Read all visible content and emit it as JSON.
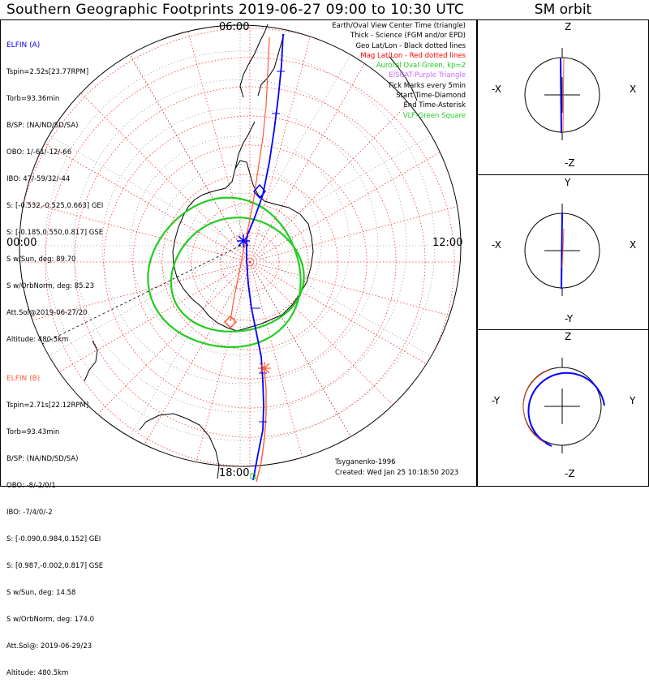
{
  "title": "Southern Geographic Footprints 2019-06-27 09:00 to 10:30 UTC",
  "sm_title": "SM orbit",
  "colors": {
    "elfin_a": "#0000ff",
    "elfin_b": "#ff5a36",
    "oval": "#22cc22",
    "mag_grid": "#ff3333",
    "eiscat": "#cc66ff",
    "geo_grid": "#000000"
  },
  "clock_labels": {
    "top": "06:00",
    "left": "00:00",
    "right": "12:00",
    "bottom": "18:00"
  },
  "elfin_a": {
    "name": "ELFIN (A)",
    "lines": [
      "Tspin=2.52s[23.77RPM]",
      "Torb=93.36min",
      "B/SP: (NA/ND/SD/SA)",
      "OBO: 1/-61/-12/-66",
      "IBO: 47/-59/32/-44",
      "S: [-0.532,-0.525,0.663] GEI",
      "S: [-0.185,0.550,0.817] GSE",
      "S w/Sun, deg: 89.70",
      "S w/OrbNorm, deg: 85.23",
      "Att.Sol@2019-06-27/20",
      "Altitude: 480.5km"
    ]
  },
  "elfin_b": {
    "name": "ELFIN (B)",
    "lines": [
      "Tspin=2.71s[22.12RPM]",
      "Torb=93.43min",
      "B/SP: (NA/ND/SD/SA)",
      "OBO: -8/-2/0/1",
      "IBO: -7/4/0/-2",
      "S: [-0.090,0.984,0.152] GEI",
      "S: [0.987,-0.002,0.817] GSE",
      "S w/Sun, deg: 14.58",
      "S w/OrbNorm, deg: 174.0",
      "Att.Sol@: 2019-06-29/23",
      "Altitude: 480.5km"
    ]
  },
  "legend": [
    {
      "text": "Earth/Oval View Center Time (triangle)",
      "color": "#000000"
    },
    {
      "text": "Thick - Science (FGM and/or EPD)",
      "color": "#000000"
    },
    {
      "text": "Geo Lat/Lon - Black dotted lines",
      "color": "#000000"
    },
    {
      "text": "Mag Lat/Lon - Red dotted lines",
      "color": "#ff0000"
    },
    {
      "text": "Auroral Oval-Green, kp=2",
      "color": "#22cc22"
    },
    {
      "text": "EISCAT-Purple Triangle",
      "color": "#cc66ff"
    },
    {
      "text": "Tick Marks every 5min",
      "color": "#000000"
    },
    {
      "text": "Start Time-Diamond",
      "color": "#000000"
    },
    {
      "text": "End Time-Asterisk",
      "color": "#000000"
    },
    {
      "text": "VLF-Green Square",
      "color": "#22cc22"
    }
  ],
  "footer": {
    "model": "Tsyganenko-1996",
    "created": "Created: Wed Jan 25 10:18:50 2023"
  },
  "sm_panels": [
    {
      "top": "Z",
      "bottom": "-Z",
      "left": "-X",
      "right": "X"
    },
    {
      "top": "Y",
      "bottom": "-Y",
      "left": "-X",
      "right": "X"
    },
    {
      "top": "Z",
      "bottom": "-Z",
      "left": "-Y",
      "right": "Y"
    }
  ]
}
